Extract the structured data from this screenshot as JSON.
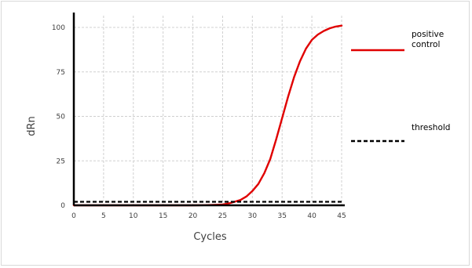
{
  "chart_data": {
    "type": "line",
    "xlabel": "Cycles",
    "ylabel": "dRn",
    "xlim": [
      0,
      45
    ],
    "ylim": [
      0,
      100
    ],
    "x_ticks": [
      0,
      5,
      10,
      15,
      20,
      25,
      30,
      35,
      40,
      45
    ],
    "y_ticks": [
      0,
      25,
      50,
      75,
      100
    ],
    "grid": true,
    "legend_position": "right",
    "series": [
      {
        "name": "positive control",
        "color": "#e00000",
        "line_style": "solid",
        "x": [
          0,
          5,
          10,
          15,
          20,
          22,
          24,
          25,
          26,
          27,
          28,
          29,
          30,
          31,
          32,
          33,
          34,
          35,
          36,
          37,
          38,
          39,
          40,
          41,
          42,
          43,
          44,
          45
        ],
        "values": [
          0,
          0,
          0,
          0,
          0,
          0.1,
          0.3,
          0.5,
          1,
          2,
          3,
          5,
          8,
          12,
          18,
          26,
          37,
          49,
          61,
          72,
          81,
          88,
          93,
          96,
          98,
          99.5,
          100.5,
          101
        ]
      },
      {
        "name": "threshold",
        "color": "#000000",
        "line_style": "dashed",
        "x": [
          0,
          45
        ],
        "values": [
          2,
          2
        ]
      }
    ]
  }
}
